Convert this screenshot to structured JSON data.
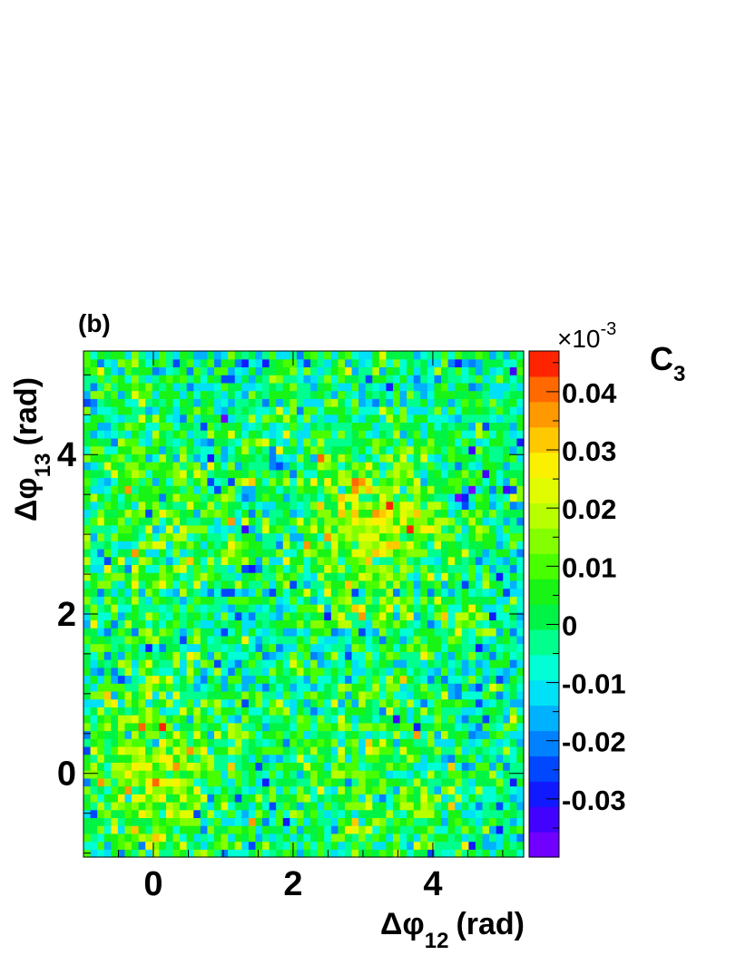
{
  "chart_data": {
    "type": "heatmap",
    "panel_label": "(b)",
    "xlabel": {
      "main": "Δφ",
      "sub": "12",
      "unit": "(rad)"
    },
    "ylabel": {
      "main": "Δφ",
      "sub": "13",
      "unit": "(rad)"
    },
    "xlim": [
      -1.0,
      5.3
    ],
    "ylim": [
      -1.05,
      5.3
    ],
    "x_ticks": [
      0,
      2,
      4
    ],
    "y_ticks": [
      0,
      2,
      4
    ],
    "x_tick_labels": [
      "0",
      "2",
      "4"
    ],
    "y_tick_labels": [
      "0",
      "2",
      "4"
    ],
    "grid": false,
    "bins": {
      "nx": 64,
      "ny": 64
    },
    "z_label": {
      "main": "C",
      "sub": "3"
    },
    "z_multiplier": {
      "prefix": "×10",
      "exponent": "-3"
    },
    "zlim": [
      -0.04,
      0.047
    ],
    "z_ticks": [
      -0.03,
      -0.02,
      -0.01,
      0,
      0.01,
      0.02,
      0.03,
      0.04
    ],
    "z_tick_labels": [
      "-0.03",
      "-0.02",
      "-0.01",
      "0",
      "0.01",
      "0.02",
      "0.03",
      "0.04"
    ],
    "z_bands": 20,
    "colormap": [
      "#8800ff",
      "#4400ff",
      "#0022ff",
      "#0077ff",
      "#00bbff",
      "#00ffee",
      "#00ff88",
      "#00ee22",
      "#44ff00",
      "#99ff00",
      "#ddff00",
      "#ffee00",
      "#ffaa00",
      "#ff6600",
      "#ff0000"
    ],
    "features": [
      {
        "description": "enhanced correlation region",
        "center": [
          0.0,
          0.0
        ],
        "sigma": 0.7,
        "amplitude": 0.022
      },
      {
        "description": "enhanced correlation region",
        "center": [
          3.14,
          3.14
        ],
        "sigma": 0.75,
        "amplitude": 0.022
      },
      {
        "description": "enhanced correlation region",
        "center": [
          0.0,
          3.14
        ],
        "sigma": 0.9,
        "amplitude": 0.011
      },
      {
        "description": "enhanced correlation region",
        "center": [
          3.14,
          0.0
        ],
        "sigma": 0.9,
        "amplitude": 0.011
      }
    ],
    "baseline": -0.004,
    "noise_sd": 0.011
  }
}
